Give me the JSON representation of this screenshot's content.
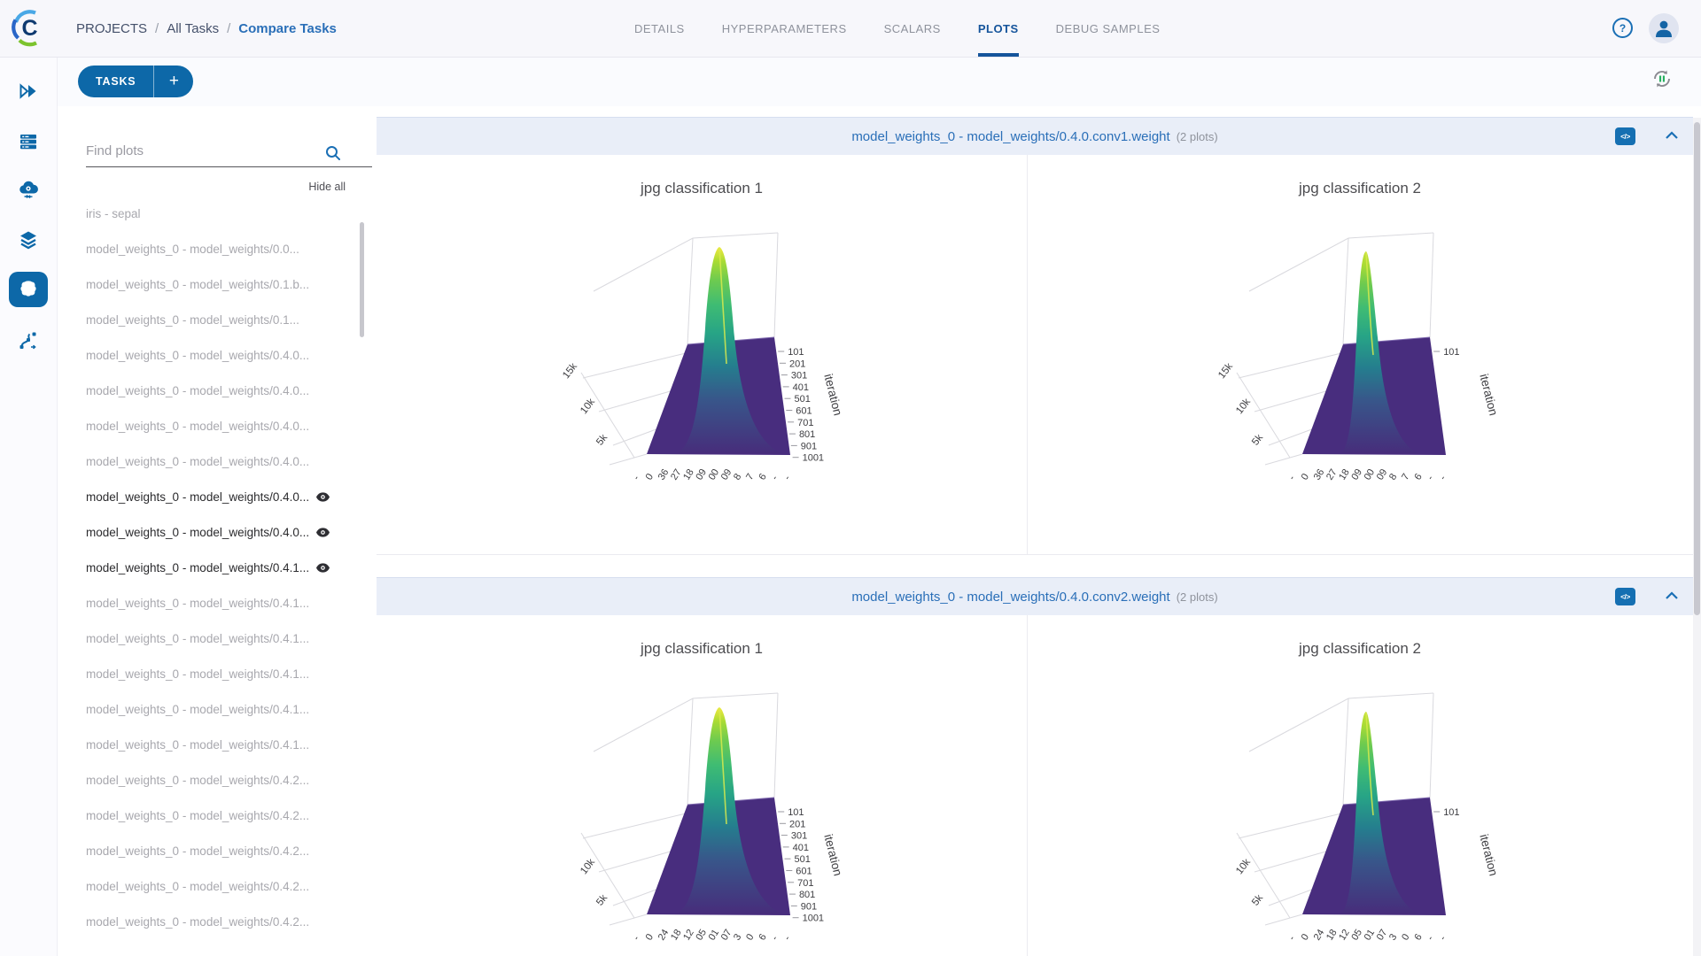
{
  "header": {
    "breadcrumb": {
      "items": [
        "PROJECTS",
        "All Tasks",
        "Compare Tasks"
      ],
      "separator": "/"
    },
    "tabs": [
      {
        "label": "DETAILS",
        "active": false
      },
      {
        "label": "HYPERPARAMETERS",
        "active": false
      },
      {
        "label": "SCALARS",
        "active": false
      },
      {
        "label": "PLOTS",
        "active": true
      },
      {
        "label": "DEBUG SAMPLES",
        "active": false
      }
    ],
    "help_icon": "?"
  },
  "toolbar": {
    "tasks_button": "TASKS",
    "add_button": "+"
  },
  "nav_rail": {
    "items": [
      {
        "name": "getting-started",
        "active": false
      },
      {
        "name": "workers-queues",
        "active": false
      },
      {
        "name": "cloud-autoscaler",
        "active": false
      },
      {
        "name": "datasets",
        "active": false
      },
      {
        "name": "projects",
        "active": true
      },
      {
        "name": "pipelines",
        "active": false
      }
    ]
  },
  "sidebar": {
    "search_placeholder": "Find plots",
    "hide_all": "Hide all",
    "items": [
      {
        "label": "iris - sepal",
        "shown": false
      },
      {
        "label": "model_weights_0 - model_weights/0.0...",
        "shown": false
      },
      {
        "label": "model_weights_0 - model_weights/0.1.b...",
        "shown": false
      },
      {
        "label": "model_weights_0 - model_weights/0.1...",
        "shown": false
      },
      {
        "label": "model_weights_0 - model_weights/0.4.0...",
        "shown": false
      },
      {
        "label": "model_weights_0 - model_weights/0.4.0...",
        "shown": false
      },
      {
        "label": "model_weights_0 - model_weights/0.4.0...",
        "shown": false
      },
      {
        "label": "model_weights_0 - model_weights/0.4.0...",
        "shown": false
      },
      {
        "label": "model_weights_0 - model_weights/0.4.0...",
        "shown": true
      },
      {
        "label": "model_weights_0 - model_weights/0.4.0...",
        "shown": true
      },
      {
        "label": "model_weights_0 - model_weights/0.4.1...",
        "shown": true
      },
      {
        "label": "model_weights_0 - model_weights/0.4.1...",
        "shown": false
      },
      {
        "label": "model_weights_0 - model_weights/0.4.1...",
        "shown": false
      },
      {
        "label": "model_weights_0 - model_weights/0.4.1...",
        "shown": false
      },
      {
        "label": "model_weights_0 - model_weights/0.4.1...",
        "shown": false
      },
      {
        "label": "model_weights_0 - model_weights/0.4.1...",
        "shown": false
      },
      {
        "label": "model_weights_0 - model_weights/0.4.2...",
        "shown": false
      },
      {
        "label": "model_weights_0 - model_weights/0.4.2...",
        "shown": false
      },
      {
        "label": "model_weights_0 - model_weights/0.4.2...",
        "shown": false
      },
      {
        "label": "model_weights_0 - model_weights/0.4.2...",
        "shown": false
      },
      {
        "label": "model_weights_0 - model_weights/0.4.2...",
        "shown": false
      }
    ]
  },
  "sections": [
    {
      "title": "model_weights_0 - model_weights/0.4.0.conv1.weight",
      "count": "(2 plots)",
      "plots": [
        {
          "title": "jpg classification 1",
          "type": "surface3d",
          "variant": "wide",
          "z_ticks": [
            "15k",
            "10k",
            "5k"
          ],
          "y_axis_title": "iteration",
          "y_ticks": [
            "101",
            "201",
            "301",
            "401",
            "501",
            "601",
            "701",
            "801",
            "901",
            "1001"
          ],
          "x_ticks": [
            "-",
            "0",
            "36",
            "27",
            "18",
            "09",
            "00",
            "09",
            "8",
            "7",
            "6",
            "-",
            "-"
          ]
        },
        {
          "title": "jpg classification 2",
          "type": "surface3d",
          "variant": "narrow",
          "z_ticks": [
            "15k",
            "10k",
            "5k"
          ],
          "y_axis_title": "iteration",
          "y_ticks": [
            "101"
          ],
          "x_ticks": [
            "-",
            "0",
            "36",
            "27",
            "18",
            "09",
            "00",
            "09",
            "8",
            "7",
            "6",
            "-",
            "-"
          ]
        }
      ]
    },
    {
      "title": "model_weights_0 - model_weights/0.4.0.conv2.weight",
      "count": "(2 plots)",
      "plots": [
        {
          "title": "jpg classification 1",
          "type": "surface3d",
          "variant": "wide",
          "z_ticks": [
            "10k",
            "5k"
          ],
          "y_axis_title": "iteration",
          "y_ticks": [
            "101",
            "201",
            "301",
            "401",
            "501",
            "601",
            "701",
            "801",
            "901",
            "1001"
          ],
          "x_ticks": [
            "-",
            "0",
            "24",
            "18",
            "12",
            "05",
            "01",
            "07",
            "3",
            "0",
            "6",
            "-",
            "-"
          ]
        },
        {
          "title": "jpg classification 2",
          "type": "surface3d",
          "variant": "narrow",
          "z_ticks": [
            "10k",
            "5k"
          ],
          "y_axis_title": "iteration",
          "y_ticks": [
            "101"
          ],
          "x_ticks": [
            "-",
            "0",
            "24",
            "18",
            "12",
            "05",
            "01",
            "07",
            "3",
            "0",
            "6",
            "-",
            "-"
          ]
        }
      ]
    }
  ],
  "colors": {
    "primary_blue": "#0d68a8",
    "link_blue": "#2a6fb8",
    "tab_active_blue": "#15549b",
    "section_header_bg": "#e9eef8",
    "surface_purple": "#482d7e",
    "ridge_green": "#3fbc73",
    "ridge_yellow": "#f2e93f",
    "hidden_item_gray": "#a8a8ae"
  }
}
